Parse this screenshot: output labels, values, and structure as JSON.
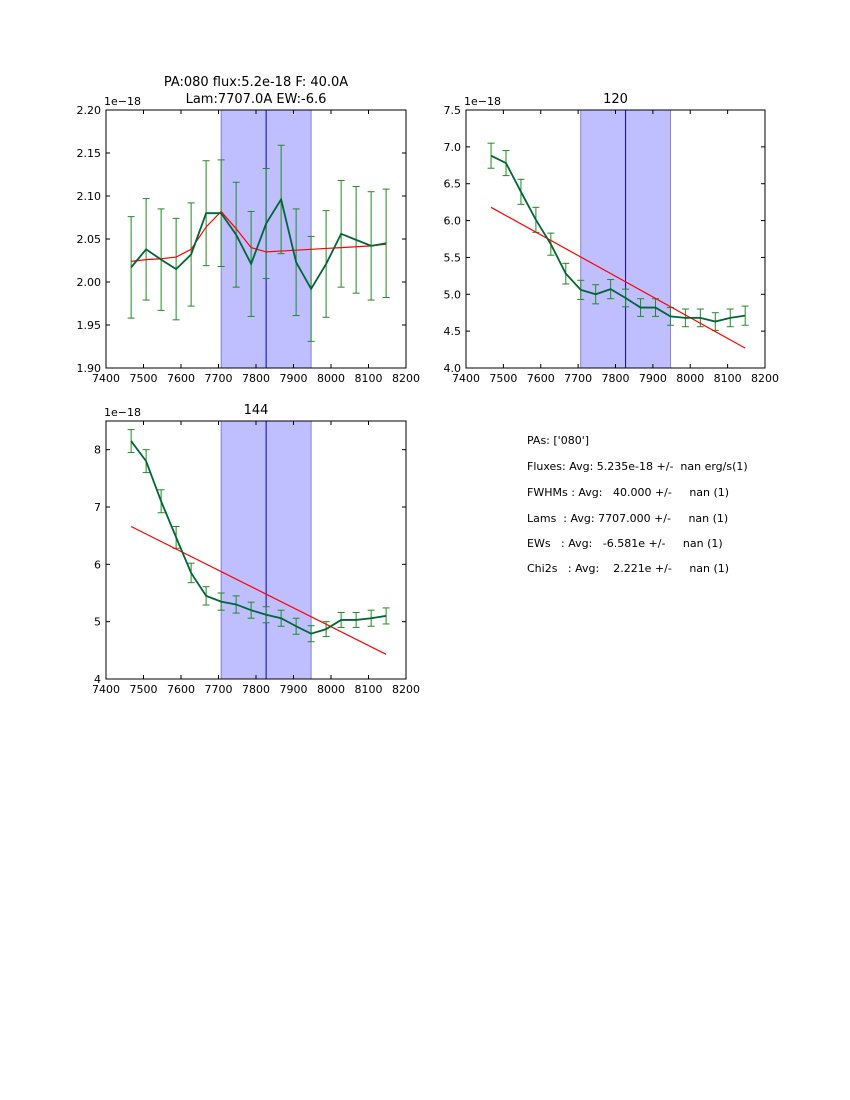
{
  "chart_data": [
    {
      "type": "line",
      "title_line1": "PA:080 flux:5.2e-18 F: 40.0A",
      "title_line2": "Lam:7707.0A EW:-6.6",
      "exponent_label": "1e−18",
      "xlim": [
        7400,
        8200
      ],
      "ylim": [
        1.9,
        2.2
      ],
      "xticks": [
        "7400",
        "7500",
        "7600",
        "7700",
        "7800",
        "7900",
        "8000",
        "8100",
        "8200"
      ],
      "yticks": [
        "1.90",
        "1.95",
        "2.00",
        "2.05",
        "2.10",
        "2.15",
        "2.20"
      ],
      "band": [
        7707,
        7947
      ],
      "center_line": 7827,
      "data_color": "#006633",
      "errorbar_color": "#228b22",
      "model_color": "#ff0000",
      "band_color": "#bfbfff",
      "data": {
        "x": [
          7467,
          7507,
          7547,
          7587,
          7627,
          7667,
          7707,
          7747,
          7787,
          7827,
          7867,
          7907,
          7947,
          7987,
          8027,
          8067,
          8107,
          8147
        ],
        "y": [
          2.017,
          2.038,
          2.026,
          2.015,
          2.032,
          2.08,
          2.08,
          2.055,
          2.021,
          2.068,
          2.096,
          2.023,
          1.992,
          2.021,
          2.056,
          2.049,
          2.042,
          2.045
        ],
        "err": [
          0.059,
          0.059,
          0.059,
          0.059,
          0.06,
          0.061,
          0.062,
          0.061,
          0.061,
          0.064,
          0.063,
          0.062,
          0.061,
          0.062,
          0.062,
          0.062,
          0.063,
          0.063
        ]
      },
      "model": {
        "x": [
          7467,
          7507,
          7547,
          7587,
          7627,
          7667,
          7707,
          7747,
          7787,
          7827,
          7867,
          7907,
          7947,
          7987,
          8027,
          8067,
          8107,
          8147
        ],
        "y": [
          2.024,
          2.026,
          2.027,
          2.029,
          2.038,
          2.064,
          2.082,
          2.062,
          2.04,
          2.035,
          2.036,
          2.037,
          2.038,
          2.039,
          2.04,
          2.041,
          2.042,
          2.044
        ]
      }
    },
    {
      "type": "line",
      "title_line1": "120",
      "title_line2": "",
      "exponent_label": "1e−18",
      "xlim": [
        7400,
        8200
      ],
      "ylim": [
        4.0,
        7.5
      ],
      "xticks": [
        "7400",
        "7500",
        "7600",
        "7700",
        "7800",
        "7900",
        "8000",
        "8100",
        "8200"
      ],
      "yticks": [
        "4.0",
        "4.5",
        "5.0",
        "5.5",
        "6.0",
        "6.5",
        "7.0",
        "7.5"
      ],
      "band": [
        7707,
        7947
      ],
      "center_line": 7827,
      "data_color": "#006633",
      "errorbar_color": "#228b22",
      "model_color": "#ff0000",
      "band_color": "#bfbfff",
      "data": {
        "x": [
          7467,
          7507,
          7547,
          7587,
          7627,
          7667,
          7707,
          7747,
          7787,
          7827,
          7867,
          7907,
          7947,
          7987,
          8027,
          8067,
          8107,
          8147
        ],
        "y": [
          6.88,
          6.78,
          6.39,
          6.01,
          5.68,
          5.28,
          5.06,
          5.0,
          5.07,
          4.95,
          4.82,
          4.82,
          4.7,
          4.68,
          4.68,
          4.63,
          4.68,
          4.71
        ],
        "err": [
          0.17,
          0.17,
          0.17,
          0.17,
          0.15,
          0.14,
          0.13,
          0.13,
          0.13,
          0.12,
          0.12,
          0.12,
          0.12,
          0.12,
          0.12,
          0.12,
          0.12,
          0.13
        ]
      },
      "model": {
        "x": [
          7467,
          8147
        ],
        "y": [
          6.18,
          4.27
        ]
      }
    },
    {
      "type": "line",
      "title_line1": "144",
      "title_line2": "",
      "exponent_label": "1e−18",
      "xlim": [
        7400,
        8200
      ],
      "ylim": [
        4,
        8.5
      ],
      "xticks": [
        "7400",
        "7500",
        "7600",
        "7700",
        "7800",
        "7900",
        "8000",
        "8100",
        "8200"
      ],
      "yticks": [
        "4",
        "5",
        "6",
        "7",
        "8"
      ],
      "band": [
        7707,
        7947
      ],
      "center_line": 7827,
      "data_color": "#006633",
      "errorbar_color": "#228b22",
      "model_color": "#ff0000",
      "band_color": "#bfbfff",
      "data": {
        "x": [
          7467,
          7507,
          7547,
          7587,
          7627,
          7667,
          7707,
          7747,
          7787,
          7827,
          7867,
          7907,
          7947,
          7987,
          8027,
          8067,
          8107,
          8147
        ],
        "y": [
          8.15,
          7.8,
          7.1,
          6.47,
          5.85,
          5.45,
          5.35,
          5.3,
          5.2,
          5.12,
          5.06,
          4.92,
          4.79,
          4.87,
          5.03,
          5.03,
          5.06,
          5.1
        ],
        "err": [
          0.2,
          0.2,
          0.2,
          0.19,
          0.17,
          0.16,
          0.15,
          0.15,
          0.14,
          0.14,
          0.14,
          0.14,
          0.14,
          0.13,
          0.13,
          0.13,
          0.14,
          0.14
        ]
      },
      "model": {
        "x": [
          7467,
          8147
        ],
        "y": [
          6.66,
          4.43
        ]
      }
    }
  ],
  "summary": {
    "pas": "PAs: ['080']",
    "fluxes": "Fluxes: Avg: 5.235e-18 +/-  nan erg/s(1)",
    "fwhms": "FWHMs : Avg:   40.000 +/-     nan (1)",
    "lams": "Lams  : Avg: 7707.000 +/-     nan (1)",
    "ews": "EWs   : Avg:   -6.581e +/-     nan (1)",
    "chi2s": "Chi2s   : Avg:    2.221e +/-     nan (1)"
  }
}
